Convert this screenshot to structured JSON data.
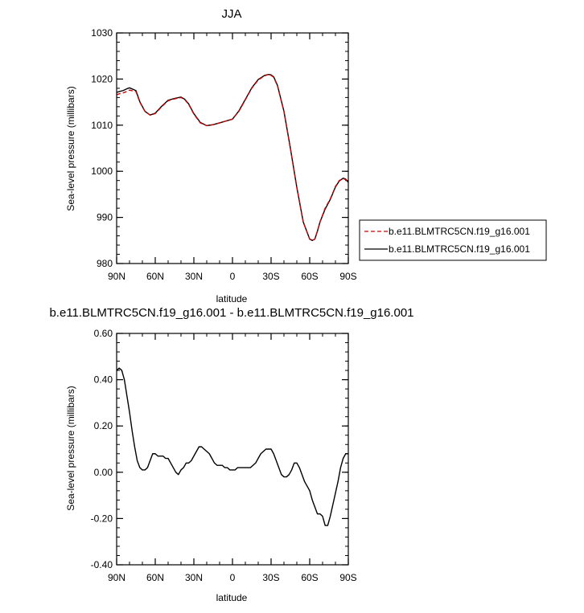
{
  "colors": {
    "series_a": "#cc0000",
    "series_b": "#000000",
    "frame": "#000000"
  },
  "chart_data": [
    {
      "type": "line",
      "title": "JJA",
      "xlabel": "latitude",
      "ylabel": "Sea-level pressure (millibars)",
      "xlim": [
        -90,
        90
      ],
      "ylim": [
        980,
        1030
      ],
      "xticks": [
        -90,
        -60,
        -30,
        0,
        30,
        60,
        90
      ],
      "xtick_labels": [
        "90N",
        "60N",
        "30N",
        "0",
        "30S",
        "60S",
        "90S"
      ],
      "yticks": [
        980,
        990,
        1000,
        1010,
        1020,
        1030
      ],
      "ytick_labels": [
        "980",
        "990",
        "1000",
        "1010",
        "1020",
        "1030"
      ],
      "grid": false,
      "legend": {
        "placement": "right-outside",
        "entries": [
          "b.e11.BLMTRC5CN.f19_g16.001",
          "b.e11.BLMTRC5CN.f19_g16.001"
        ]
      },
      "series": [
        {
          "name": "b.e11.BLMTRC5CN.f19_g16.001",
          "style": "dashed",
          "color": "#cc0000",
          "x": [
            -90,
            -88,
            -85,
            -82,
            -80,
            -75,
            -72,
            -68,
            -64,
            -60,
            -55,
            -50,
            -45,
            -40,
            -37,
            -34,
            -30,
            -25,
            -20,
            -15,
            -10,
            -5,
            0,
            5,
            10,
            15,
            20,
            25,
            28,
            30,
            32,
            35,
            40,
            45,
            50,
            55,
            60,
            62,
            64,
            66,
            68,
            72,
            76,
            80,
            83,
            86,
            88,
            90
          ],
          "y": [
            1016.6,
            1016.8,
            1017.0,
            1017.3,
            1017.6,
            1017.3,
            1015.0,
            1013.0,
            1012.2,
            1012.5,
            1014.0,
            1015.3,
            1015.7,
            1016.0,
            1015.5,
            1014.5,
            1012.4,
            1010.5,
            1009.9,
            1010.1,
            1010.5,
            1010.9,
            1011.3,
            1013.0,
            1015.5,
            1018.0,
            1019.8,
            1020.7,
            1021.0,
            1020.8,
            1020.4,
            1018.5,
            1013.0,
            1005.0,
            996.5,
            989.0,
            985.3,
            985.0,
            985.3,
            987.0,
            989.0,
            992.0,
            994.0,
            996.7,
            998.0,
            998.4,
            998.2,
            997.5
          ]
        },
        {
          "name": "b.e11.BLMTRC5CN.f19_g16.001",
          "style": "solid",
          "color": "#000000",
          "x": [
            -90,
            -88,
            -85,
            -82,
            -80,
            -75,
            -72,
            -68,
            -64,
            -60,
            -55,
            -50,
            -45,
            -40,
            -37,
            -34,
            -30,
            -25,
            -20,
            -15,
            -10,
            -5,
            0,
            5,
            10,
            15,
            20,
            25,
            28,
            30,
            32,
            35,
            40,
            45,
            50,
            55,
            60,
            62,
            64,
            66,
            68,
            72,
            76,
            80,
            83,
            86,
            88,
            90
          ],
          "y": [
            1017.1,
            1017.3,
            1017.5,
            1017.9,
            1018.1,
            1017.5,
            1015.1,
            1013.0,
            1012.2,
            1012.6,
            1014.1,
            1015.4,
            1015.8,
            1016.1,
            1015.6,
            1014.6,
            1012.5,
            1010.6,
            1009.9,
            1010.1,
            1010.5,
            1010.9,
            1011.3,
            1013.1,
            1015.6,
            1018.1,
            1019.9,
            1020.8,
            1021.0,
            1020.9,
            1020.5,
            1018.6,
            1013.0,
            1005.0,
            996.5,
            989.0,
            985.3,
            985.0,
            985.3,
            987.0,
            989.0,
            991.8,
            993.9,
            996.6,
            997.9,
            998.5,
            998.3,
            997.6
          ]
        }
      ]
    },
    {
      "type": "line",
      "title": "b.e11.BLMTRC5CN.f19_g16.001 - b.e11.BLMTRC5CN.f19_g16.001",
      "xlabel": "latitude",
      "ylabel": "Sea-level pressure (millibars)",
      "xlim": [
        -90,
        90
      ],
      "ylim": [
        -0.4,
        0.6
      ],
      "xticks": [
        -90,
        -60,
        -30,
        0,
        30,
        60,
        90
      ],
      "xtick_labels": [
        "90N",
        "60N",
        "30N",
        "0",
        "30S",
        "60S",
        "90S"
      ],
      "yticks": [
        -0.4,
        -0.2,
        0.0,
        0.2,
        0.4,
        0.6
      ],
      "ytick_labels": [
        "-0.40",
        "-0.20",
        "0.00",
        "0.20",
        "0.40",
        "0.60"
      ],
      "grid": false,
      "series": [
        {
          "style": "solid",
          "color": "#000000",
          "x": [
            -90,
            -88,
            -86,
            -84,
            -82,
            -80,
            -78,
            -76,
            -74,
            -72,
            -70,
            -68,
            -66,
            -64,
            -62,
            -60,
            -58,
            -56,
            -54,
            -52,
            -50,
            -48,
            -46,
            -44,
            -42,
            -40,
            -38,
            -36,
            -34,
            -32,
            -30,
            -28,
            -26,
            -24,
            -22,
            -20,
            -18,
            -16,
            -14,
            -12,
            -10,
            -8,
            -6,
            -4,
            -2,
            0,
            2,
            4,
            6,
            8,
            10,
            12,
            14,
            16,
            18,
            20,
            22,
            24,
            26,
            28,
            30,
            32,
            34,
            36,
            38,
            40,
            42,
            44,
            46,
            48,
            50,
            52,
            54,
            56,
            58,
            60,
            62,
            64,
            66,
            68,
            70,
            72,
            74,
            76,
            78,
            80,
            82,
            84,
            86,
            88,
            90
          ],
          "y": [
            0.44,
            0.45,
            0.44,
            0.4,
            0.33,
            0.26,
            0.18,
            0.11,
            0.05,
            0.02,
            0.01,
            0.01,
            0.02,
            0.05,
            0.08,
            0.08,
            0.07,
            0.07,
            0.07,
            0.06,
            0.06,
            0.04,
            0.02,
            0.0,
            -0.01,
            0.01,
            0.02,
            0.04,
            0.04,
            0.05,
            0.07,
            0.09,
            0.11,
            0.11,
            0.1,
            0.09,
            0.08,
            0.06,
            0.04,
            0.03,
            0.03,
            0.03,
            0.02,
            0.02,
            0.01,
            0.01,
            0.01,
            0.02,
            0.02,
            0.02,
            0.02,
            0.02,
            0.02,
            0.03,
            0.04,
            0.06,
            0.08,
            0.09,
            0.1,
            0.1,
            0.1,
            0.08,
            0.05,
            0.02,
            -0.01,
            -0.02,
            -0.02,
            -0.01,
            0.01,
            0.04,
            0.04,
            0.02,
            -0.01,
            -0.04,
            -0.06,
            -0.08,
            -0.12,
            -0.15,
            -0.18,
            -0.18,
            -0.19,
            -0.23,
            -0.23,
            -0.19,
            -0.14,
            -0.09,
            -0.04,
            0.02,
            0.06,
            0.08,
            0.08
          ]
        }
      ]
    }
  ]
}
